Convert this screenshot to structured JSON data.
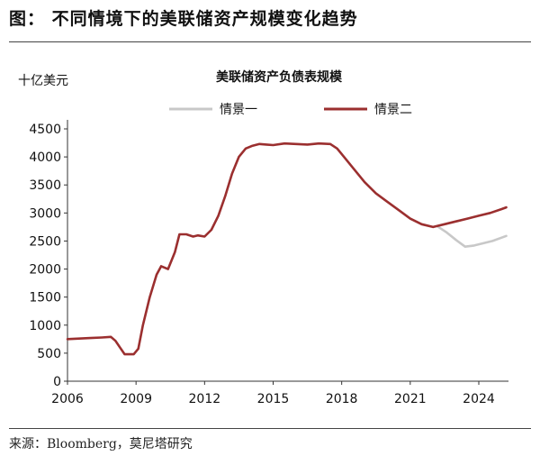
{
  "figure": {
    "title": "图：  不同情境下的美联储资产规模变化趋势",
    "source": "来源：Bloomberg，莫尼塔研究"
  },
  "chart_data": {
    "type": "line",
    "title": "美联储资产负债表规模",
    "ylabel": "十亿美元",
    "xlabel": "",
    "xlim": [
      2006,
      2025.3
    ],
    "ylim": [
      0,
      4500
    ],
    "x_ticks": [
      2006,
      2009,
      2012,
      2015,
      2018,
      2021,
      2024
    ],
    "y_ticks": [
      0,
      500,
      1000,
      1500,
      2000,
      2500,
      3000,
      3500,
      4000,
      4500
    ],
    "grid": false,
    "legend_position": "top",
    "colors": {
      "scenario1": "#c8c8c8",
      "scenario2": "#9b2f2f"
    },
    "series": [
      {
        "name": "情景一",
        "x": [
          2022.2,
          2022.6,
          2023.0,
          2023.4,
          2023.8,
          2024.2,
          2024.6,
          2025.0,
          2025.2
        ],
        "y": [
          2760,
          2650,
          2520,
          2400,
          2420,
          2460,
          2500,
          2560,
          2590
        ]
      },
      {
        "name": "情景二",
        "x": [
          2006.0,
          2006.5,
          2007.0,
          2007.5,
          2007.9,
          2008.1,
          2008.3,
          2008.5,
          2008.9,
          2009.1,
          2009.3,
          2009.6,
          2009.9,
          2010.1,
          2010.4,
          2010.7,
          2010.9,
          2011.2,
          2011.5,
          2011.7,
          2012.0,
          2012.3,
          2012.6,
          2012.9,
          2013.2,
          2013.5,
          2013.8,
          2014.1,
          2014.4,
          2014.7,
          2015.0,
          2015.5,
          2016.0,
          2016.5,
          2017.0,
          2017.5,
          2017.8,
          2018.1,
          2018.5,
          2019.0,
          2019.5,
          2020.0,
          2020.5,
          2021.0,
          2021.5,
          2022.0,
          2022.2,
          2022.5,
          2023.0,
          2023.5,
          2024.0,
          2024.5,
          2025.0,
          2025.2
        ],
        "y": [
          750,
          760,
          770,
          780,
          790,
          720,
          600,
          480,
          480,
          580,
          1000,
          1500,
          1900,
          2050,
          2000,
          2300,
          2620,
          2620,
          2580,
          2600,
          2580,
          2700,
          2950,
          3300,
          3700,
          4000,
          4150,
          4200,
          4230,
          4220,
          4210,
          4240,
          4230,
          4220,
          4240,
          4230,
          4150,
          4000,
          3800,
          3550,
          3350,
          3200,
          3050,
          2900,
          2800,
          2750,
          2770,
          2800,
          2850,
          2900,
          2950,
          3000,
          3070,
          3100
        ]
      }
    ]
  }
}
